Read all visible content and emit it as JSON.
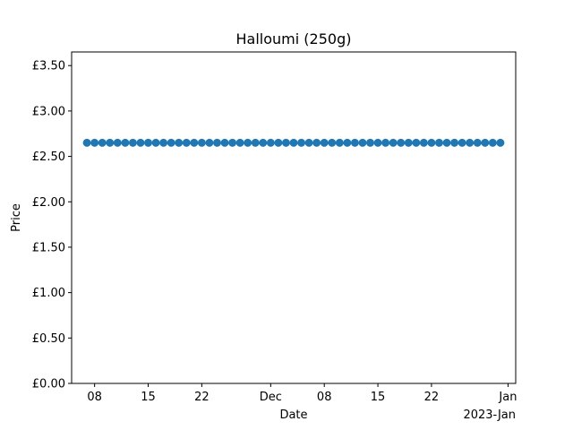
{
  "chart_data": {
    "type": "scatter",
    "title": "Halloumi (250g)",
    "xlabel": "Date",
    "ylabel": "Price",
    "x_axis_offset_label": "2023-Jan",
    "xlim": [
      "2022-11-05",
      "2023-01-02"
    ],
    "ylim": [
      0,
      3.65
    ],
    "x_ticks": [
      {
        "date": "2022-11-08",
        "label": "08"
      },
      {
        "date": "2022-11-15",
        "label": "15"
      },
      {
        "date": "2022-11-22",
        "label": "22"
      },
      {
        "date": "2022-12-01",
        "label": "Dec"
      },
      {
        "date": "2022-12-08",
        "label": "08"
      },
      {
        "date": "2022-12-15",
        "label": "15"
      },
      {
        "date": "2022-12-22",
        "label": "22"
      },
      {
        "date": "2023-01-01",
        "label": "Jan"
      }
    ],
    "y_ticks": [
      {
        "value": 0.0,
        "label": "£0.00"
      },
      {
        "value": 0.5,
        "label": "£0.50"
      },
      {
        "value": 1.0,
        "label": "£1.00"
      },
      {
        "value": 1.5,
        "label": "£1.50"
      },
      {
        "value": 2.0,
        "label": "£2.00"
      },
      {
        "value": 2.5,
        "label": "£2.50"
      },
      {
        "value": 3.0,
        "label": "£3.00"
      },
      {
        "value": 3.5,
        "label": "£3.50"
      }
    ],
    "series": [
      {
        "color": "#1f77b4",
        "x": [
          "2022-11-07",
          "2022-11-08",
          "2022-11-09",
          "2022-11-10",
          "2022-11-11",
          "2022-11-12",
          "2022-11-13",
          "2022-11-14",
          "2022-11-15",
          "2022-11-16",
          "2022-11-17",
          "2022-11-18",
          "2022-11-19",
          "2022-11-20",
          "2022-11-21",
          "2022-11-22",
          "2022-11-23",
          "2022-11-24",
          "2022-11-25",
          "2022-11-26",
          "2022-11-27",
          "2022-11-28",
          "2022-11-29",
          "2022-11-30",
          "2022-12-01",
          "2022-12-02",
          "2022-12-03",
          "2022-12-04",
          "2022-12-05",
          "2022-12-06",
          "2022-12-07",
          "2022-12-08",
          "2022-12-09",
          "2022-12-10",
          "2022-12-11",
          "2022-12-12",
          "2022-12-13",
          "2022-12-14",
          "2022-12-15",
          "2022-12-16",
          "2022-12-17",
          "2022-12-18",
          "2022-12-19",
          "2022-12-20",
          "2022-12-21",
          "2022-12-22",
          "2022-12-23",
          "2022-12-24",
          "2022-12-25",
          "2022-12-26",
          "2022-12-27",
          "2022-12-28",
          "2022-12-29",
          "2022-12-30",
          "2022-12-31"
        ],
        "y": [
          2.65,
          2.65,
          2.65,
          2.65,
          2.65,
          2.65,
          2.65,
          2.65,
          2.65,
          2.65,
          2.65,
          2.65,
          2.65,
          2.65,
          2.65,
          2.65,
          2.65,
          2.65,
          2.65,
          2.65,
          2.65,
          2.65,
          2.65,
          2.65,
          2.65,
          2.65,
          2.65,
          2.65,
          2.65,
          2.65,
          2.65,
          2.65,
          2.65,
          2.65,
          2.65,
          2.65,
          2.65,
          2.65,
          2.65,
          2.65,
          2.65,
          2.65,
          2.65,
          2.65,
          2.65,
          2.65,
          2.65,
          2.65,
          2.65,
          2.65,
          2.65,
          2.65,
          2.65,
          2.65,
          2.65
        ]
      }
    ]
  }
}
